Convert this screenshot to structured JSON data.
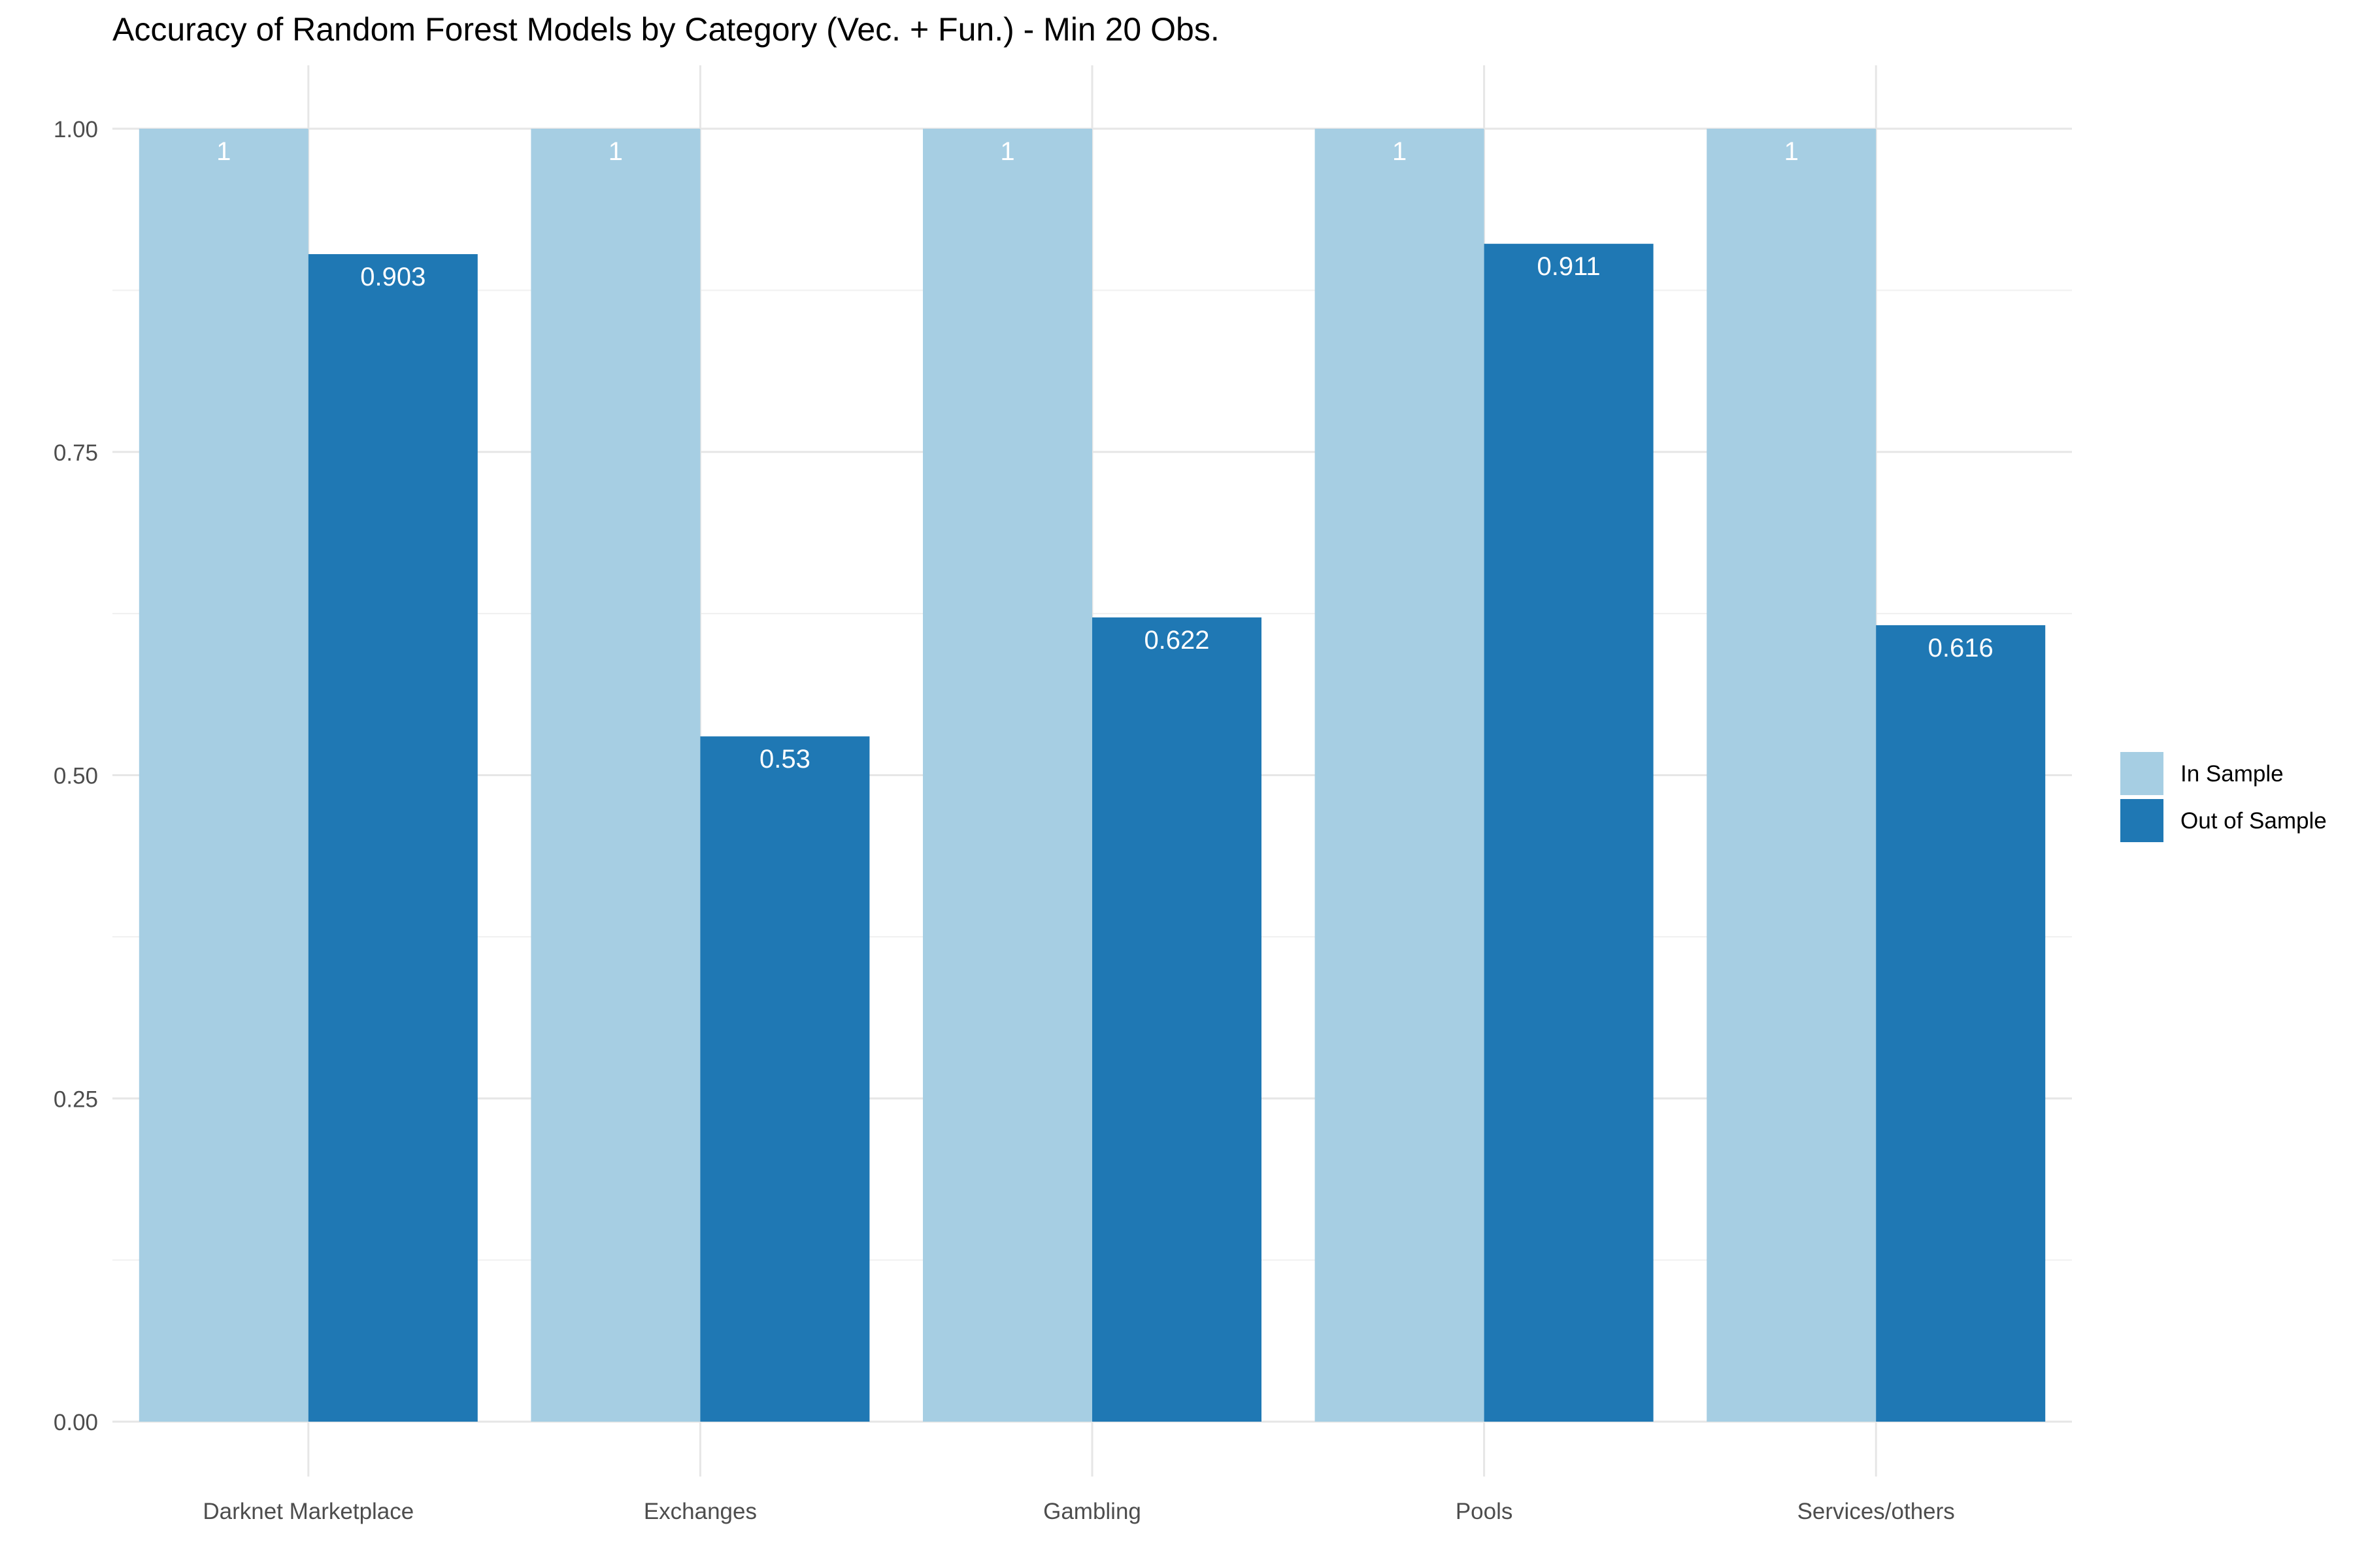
{
  "chart_data": {
    "type": "bar",
    "title": "Accuracy of Random Forest Models by Category (Vec. + Fun.) - Min 20 Obs.",
    "xlabel": "",
    "ylabel": "",
    "categories": [
      "Darknet Marketplace",
      "Exchanges",
      "Gambling",
      "Pools",
      "Services/others"
    ],
    "series": [
      {
        "name": "In Sample",
        "values": [
          1,
          1,
          1,
          1,
          1
        ],
        "labels": [
          "1",
          "1",
          "1",
          "1",
          "1"
        ],
        "color": "#a6cee3"
      },
      {
        "name": "Out of Sample",
        "values": [
          0.903,
          0.53,
          0.622,
          0.911,
          0.616
        ],
        "labels": [
          "0.903",
          "0.53",
          "0.622",
          "0.911",
          "0.616"
        ],
        "color": "#1f78b4"
      }
    ],
    "ylim": [
      0,
      1.05
    ],
    "yticks": [
      0,
      0.25,
      0.5,
      0.75,
      1
    ],
    "ytick_labels": [
      "0.00",
      "0.25",
      "0.50",
      "0.75",
      "1.00"
    ],
    "grid": true,
    "legend_position": "right"
  }
}
